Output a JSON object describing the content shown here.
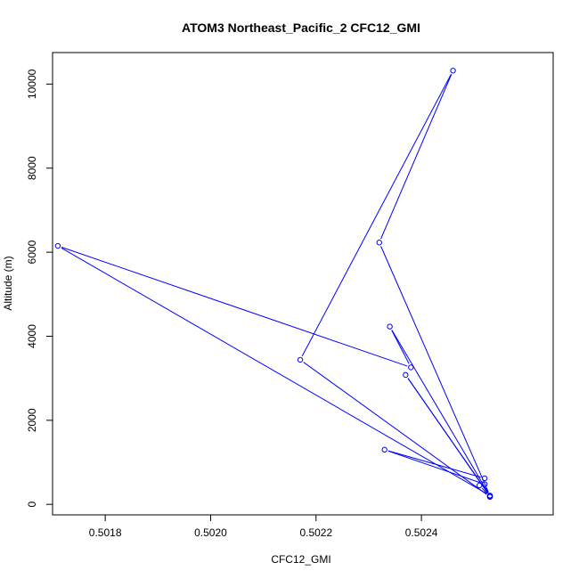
{
  "chart_data": {
    "type": "line",
    "title": "ATOM3 Northeast_Pacific_2 CFC12_GMI",
    "xlabel": "CFC12_GMI",
    "ylabel": "Altitude (m)",
    "xlim": [
      0.5017,
      0.50265
    ],
    "ylim": [
      -250,
      10750
    ],
    "x_ticks": [
      0.5018,
      0.502,
      0.5022,
      0.5024
    ],
    "x_tick_labels": [
      "0.5018",
      "0.5020",
      "0.5022",
      "0.5024"
    ],
    "y_ticks": [
      0,
      2000,
      4000,
      6000,
      8000,
      10000
    ],
    "y_tick_labels": [
      "0",
      "2000",
      "4000",
      "6000",
      "8000",
      "10000"
    ],
    "grid": false,
    "series": [
      {
        "color": "#0000ff",
        "marker": "open-circle",
        "points": [
          {
            "x": 0.50253,
            "y": 180
          },
          {
            "x": 0.50252,
            "y": 480
          },
          {
            "x": 0.50233,
            "y": 1300
          },
          {
            "x": 0.50252,
            "y": 620
          },
          {
            "x": 0.50251,
            "y": 450
          },
          {
            "x": 0.50253,
            "y": 190
          },
          {
            "x": 0.50237,
            "y": 3080
          },
          {
            "x": 0.50253,
            "y": 200
          },
          {
            "x": 0.50234,
            "y": 4230
          },
          {
            "x": 0.50238,
            "y": 3260
          },
          {
            "x": 0.50171,
            "y": 6150
          },
          {
            "x": 0.50253,
            "y": 210
          },
          {
            "x": 0.50232,
            "y": 6230
          },
          {
            "x": 0.50246,
            "y": 10320
          },
          {
            "x": 0.50217,
            "y": 3440
          },
          {
            "x": 0.50253,
            "y": 180
          }
        ]
      }
    ]
  }
}
